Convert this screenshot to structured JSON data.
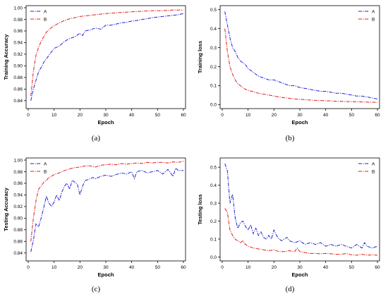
{
  "panels": [
    {
      "caption": "(a)"
    },
    {
      "caption": "(b)"
    },
    {
      "caption": "(c)"
    },
    {
      "caption": "(d)"
    }
  ],
  "colors": {
    "A": "#1f1fd6",
    "B": "#e01818"
  },
  "chart_data": [
    {
      "type": "line",
      "title": "",
      "xlabel": "Epoch",
      "ylabel": "Training Accuracy",
      "xlim": [
        0,
        60
      ],
      "ylim": [
        0.83,
        1.0
      ],
      "xticks": [
        0,
        10,
        20,
        30,
        40,
        50,
        60
      ],
      "xtick_labels": [
        "0",
        "10",
        "20",
        "30",
        "40",
        "50",
        "60"
      ],
      "yticks": [
        0.84,
        0.86,
        0.88,
        0.9,
        0.92,
        0.94,
        0.96,
        0.98,
        1.0
      ],
      "ytick_labels": [
        "0.84",
        "0.86",
        "0.88",
        "0.90",
        "0.92",
        "0.94",
        "0.96",
        "0.98",
        "1.00"
      ],
      "grid": false,
      "legend": "top-left",
      "series": [
        {
          "name": "A",
          "x": [
            1,
            2,
            3,
            4,
            5,
            6,
            7,
            8,
            9,
            10,
            12,
            14,
            16,
            18,
            20,
            21,
            22,
            24,
            26,
            28,
            30,
            32,
            34,
            36,
            38,
            40,
            42,
            44,
            46,
            48,
            50,
            52,
            54,
            56,
            58,
            60
          ],
          "values": [
            0.84,
            0.86,
            0.875,
            0.89,
            0.897,
            0.906,
            0.912,
            0.918,
            0.924,
            0.93,
            0.934,
            0.942,
            0.947,
            0.95,
            0.956,
            0.952,
            0.96,
            0.962,
            0.965,
            0.963,
            0.97,
            0.97,
            0.972,
            0.974,
            0.975,
            0.977,
            0.978,
            0.98,
            0.981,
            0.983,
            0.984,
            0.985,
            0.986,
            0.987,
            0.988,
            0.99
          ]
        },
        {
          "name": "B",
          "x": [
            1,
            2,
            3,
            4,
            5,
            6,
            7,
            8,
            9,
            10,
            12,
            14,
            16,
            18,
            20,
            22,
            24,
            26,
            28,
            30,
            33,
            36,
            40,
            44,
            48,
            52,
            56,
            60
          ],
          "values": [
            0.848,
            0.89,
            0.918,
            0.932,
            0.942,
            0.95,
            0.958,
            0.962,
            0.966,
            0.969,
            0.974,
            0.978,
            0.981,
            0.983,
            0.985,
            0.986,
            0.987,
            0.988,
            0.989,
            0.99,
            0.991,
            0.992,
            0.993,
            0.994,
            0.995,
            0.995,
            0.996,
            0.996
          ]
        }
      ]
    },
    {
      "type": "line",
      "title": "",
      "xlabel": "Epoch",
      "ylabel": "Training loss",
      "xlim": [
        0,
        60
      ],
      "ylim": [
        -0.01,
        0.51
      ],
      "xticks": [
        0,
        10,
        20,
        30,
        40,
        50,
        60
      ],
      "xtick_labels": [
        "0",
        "10",
        "20",
        "30",
        "40",
        "50",
        "60"
      ],
      "yticks": [
        0.0,
        0.1,
        0.2,
        0.3,
        0.4,
        0.5
      ],
      "ytick_labels": [
        "0.0",
        "0.1",
        "0.2",
        "0.3",
        "0.4",
        "0.5"
      ],
      "grid": false,
      "legend": "top-right",
      "series": [
        {
          "name": "A",
          "x": [
            1,
            2,
            3,
            4,
            5,
            6,
            7,
            8,
            9,
            10,
            12,
            14,
            16,
            18,
            20,
            22,
            24,
            26,
            28,
            30,
            32,
            34,
            36,
            38,
            40,
            42,
            44,
            46,
            48,
            50,
            52,
            54,
            56,
            58,
            60
          ],
          "values": [
            0.49,
            0.42,
            0.35,
            0.3,
            0.28,
            0.25,
            0.23,
            0.22,
            0.21,
            0.19,
            0.17,
            0.15,
            0.14,
            0.13,
            0.13,
            0.12,
            0.11,
            0.1,
            0.1,
            0.09,
            0.085,
            0.08,
            0.075,
            0.07,
            0.07,
            0.065,
            0.06,
            0.06,
            0.055,
            0.05,
            0.045,
            0.045,
            0.04,
            0.035,
            0.03
          ]
        },
        {
          "name": "B",
          "x": [
            1,
            2,
            3,
            4,
            5,
            6,
            7,
            8,
            9,
            10,
            12,
            14,
            16,
            18,
            20,
            22,
            24,
            26,
            28,
            30,
            33,
            36,
            40,
            44,
            48,
            52,
            56,
            60
          ],
          "values": [
            0.4,
            0.28,
            0.2,
            0.16,
            0.13,
            0.11,
            0.1,
            0.09,
            0.08,
            0.075,
            0.068,
            0.06,
            0.055,
            0.05,
            0.045,
            0.04,
            0.036,
            0.033,
            0.03,
            0.028,
            0.025,
            0.022,
            0.02,
            0.018,
            0.016,
            0.015,
            0.013,
            0.012
          ]
        }
      ]
    },
    {
      "type": "line",
      "title": "",
      "xlabel": "Epoch",
      "ylabel": "Testing Accuracy",
      "xlim": [
        0,
        60
      ],
      "ylim": [
        0.83,
        1.0
      ],
      "xticks": [
        0,
        10,
        20,
        30,
        40,
        50,
        60
      ],
      "xtick_labels": [
        "0",
        "10",
        "20",
        "30",
        "40",
        "50",
        "60"
      ],
      "yticks": [
        0.84,
        0.86,
        0.88,
        0.9,
        0.92,
        0.94,
        0.96,
        0.98,
        1.0
      ],
      "ytick_labels": [
        "0.84",
        "0.86",
        "0.88",
        "0.90",
        "0.92",
        "0.94",
        "0.96",
        "0.98",
        "1.00"
      ],
      "grid": false,
      "legend": "top-left",
      "series": [
        {
          "name": "A",
          "x": [
            1,
            2,
            3,
            4,
            5,
            6,
            7,
            8,
            9,
            10,
            11,
            12,
            13,
            14,
            15,
            16,
            17,
            18,
            19,
            20,
            21,
            22,
            23,
            24,
            25,
            26,
            28,
            30,
            32,
            34,
            36,
            38,
            40,
            41,
            42,
            44,
            46,
            48,
            50,
            52,
            54,
            56,
            57,
            58,
            60
          ],
          "values": [
            0.842,
            0.862,
            0.89,
            0.885,
            0.9,
            0.918,
            0.938,
            0.926,
            0.92,
            0.928,
            0.94,
            0.93,
            0.945,
            0.955,
            0.96,
            0.95,
            0.965,
            0.962,
            0.958,
            0.94,
            0.955,
            0.965,
            0.966,
            0.968,
            0.97,
            0.968,
            0.972,
            0.974,
            0.972,
            0.975,
            0.978,
            0.976,
            0.98,
            0.968,
            0.98,
            0.982,
            0.978,
            0.98,
            0.982,
            0.976,
            0.984,
            0.972,
            0.986,
            0.982,
            0.982
          ]
        },
        {
          "name": "B",
          "x": [
            1,
            2,
            3,
            4,
            5,
            6,
            7,
            8,
            9,
            10,
            12,
            14,
            16,
            18,
            20,
            22,
            24,
            26,
            28,
            30,
            32,
            34,
            36,
            38,
            40,
            42,
            44,
            46,
            48,
            50,
            52,
            54,
            56,
            58,
            60
          ],
          "values": [
            0.86,
            0.9,
            0.93,
            0.95,
            0.955,
            0.962,
            0.965,
            0.97,
            0.972,
            0.975,
            0.978,
            0.982,
            0.985,
            0.987,
            0.988,
            0.99,
            0.99,
            0.988,
            0.991,
            0.992,
            0.993,
            0.992,
            0.994,
            0.993,
            0.994,
            0.995,
            0.994,
            0.996,
            0.995,
            0.996,
            0.996,
            0.995,
            0.997,
            0.996,
            0.998
          ]
        }
      ]
    },
    {
      "type": "line",
      "title": "",
      "xlabel": "Epoch",
      "ylabel": "Testing loss",
      "xlim": [
        0,
        60
      ],
      "ylim": [
        -0.01,
        0.54
      ],
      "xticks": [
        0,
        10,
        20,
        30,
        40,
        50,
        60
      ],
      "xtick_labels": [
        "0",
        "10",
        "20",
        "30",
        "40",
        "50",
        "60"
      ],
      "yticks": [
        0.0,
        0.1,
        0.2,
        0.3,
        0.4,
        0.5
      ],
      "ytick_labels": [
        "0.0",
        "0.1",
        "0.2",
        "0.3",
        "0.4",
        "0.5"
      ],
      "grid": false,
      "legend": "top-right",
      "series": [
        {
          "name": "A",
          "x": [
            1,
            2,
            3,
            4,
            5,
            6,
            7,
            8,
            9,
            10,
            11,
            12,
            13,
            14,
            15,
            16,
            17,
            18,
            19,
            20,
            21,
            22,
            23,
            24,
            25,
            26,
            28,
            30,
            32,
            34,
            36,
            38,
            40,
            42,
            44,
            46,
            48,
            50,
            52,
            54,
            55,
            56,
            58,
            60
          ],
          "values": [
            0.52,
            0.48,
            0.3,
            0.35,
            0.22,
            0.16,
            0.19,
            0.2,
            0.17,
            0.15,
            0.18,
            0.13,
            0.16,
            0.12,
            0.14,
            0.11,
            0.1,
            0.12,
            0.1,
            0.15,
            0.12,
            0.1,
            0.09,
            0.1,
            0.11,
            0.09,
            0.08,
            0.09,
            0.07,
            0.08,
            0.07,
            0.08,
            0.06,
            0.07,
            0.06,
            0.07,
            0.06,
            0.05,
            0.07,
            0.05,
            0.08,
            0.06,
            0.05,
            0.06
          ]
        },
        {
          "name": "B",
          "x": [
            1,
            2,
            3,
            4,
            5,
            6,
            7,
            8,
            9,
            10,
            12,
            14,
            16,
            18,
            20,
            22,
            24,
            26,
            28,
            29,
            30,
            32,
            34,
            36,
            38,
            40,
            42,
            44,
            46,
            48,
            50,
            52,
            54,
            56,
            58,
            60
          ],
          "values": [
            0.27,
            0.25,
            0.15,
            0.12,
            0.1,
            0.09,
            0.08,
            0.09,
            0.07,
            0.06,
            0.05,
            0.045,
            0.04,
            0.035,
            0.04,
            0.03,
            0.03,
            0.035,
            0.03,
            0.05,
            0.03,
            0.025,
            0.02,
            0.02,
            0.018,
            0.02,
            0.018,
            0.015,
            0.015,
            0.02,
            0.012,
            0.01,
            0.015,
            0.01,
            0.012,
            0.01
          ]
        }
      ]
    }
  ]
}
